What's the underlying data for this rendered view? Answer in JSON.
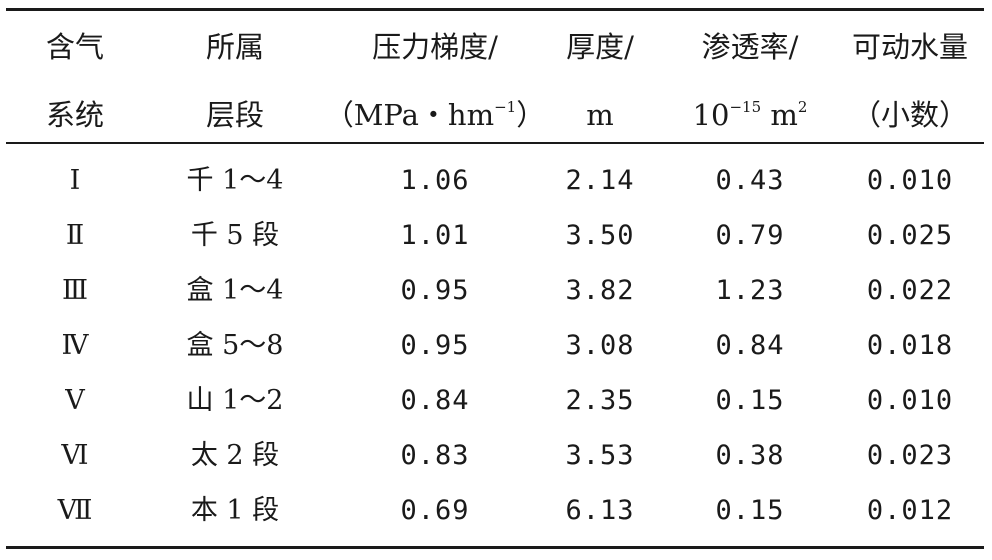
{
  "table": {
    "headers": [
      {
        "line1": "含气",
        "line2": "系统"
      },
      {
        "line1": "所属",
        "line2": "层段"
      },
      {
        "line1": "压力梯度/",
        "line2_pre": "（MPa・hm",
        "line2_sup": "−1",
        "line2_post": "）"
      },
      {
        "line1": "厚度/",
        "line2": "m"
      },
      {
        "line1": "渗透率/",
        "line2_pre": "10",
        "line2_sup": "−15",
        "line2_mid": " m",
        "line2_sup2": "2"
      },
      {
        "line1": "可动水量",
        "line2": "（小数）"
      }
    ],
    "rows": [
      {
        "system": "Ⅰ",
        "layer": "千 1～4",
        "pressure": "1.06",
        "thickness": "2.14",
        "permeability": "0.43",
        "water": "0.010"
      },
      {
        "system": "Ⅱ",
        "layer": "千 5 段",
        "pressure": "1.01",
        "thickness": "3.50",
        "permeability": "0.79",
        "water": "0.025"
      },
      {
        "system": "Ⅲ",
        "layer": "盒 1～4",
        "pressure": "0.95",
        "thickness": "3.82",
        "permeability": "1.23",
        "water": "0.022"
      },
      {
        "system": "Ⅳ",
        "layer": "盒 5～8",
        "pressure": "0.95",
        "thickness": "3.08",
        "permeability": "0.84",
        "water": "0.018"
      },
      {
        "system": "Ⅴ",
        "layer": "山 1～2",
        "pressure": "0.84",
        "thickness": "2.35",
        "permeability": "0.15",
        "water": "0.010"
      },
      {
        "system": "Ⅵ",
        "layer": "太 2 段",
        "pressure": "0.83",
        "thickness": "3.53",
        "permeability": "0.38",
        "water": "0.023"
      },
      {
        "system": "Ⅶ",
        "layer": "本 1 段",
        "pressure": "0.69",
        "thickness": "6.13",
        "permeability": "0.15",
        "water": "0.012"
      }
    ]
  }
}
